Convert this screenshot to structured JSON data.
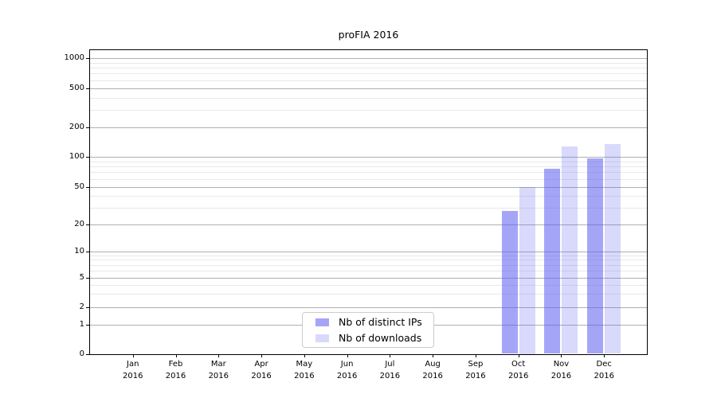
{
  "chart_data": {
    "type": "bar",
    "title": "proFIA 2016",
    "categories": [
      "Jan",
      "Feb",
      "Mar",
      "Apr",
      "May",
      "Jun",
      "Jul",
      "Aug",
      "Sep",
      "Oct",
      "Nov",
      "Dec"
    ],
    "category_year": "2016",
    "series": [
      {
        "name": "Nb of distinct IPs",
        "base_color": "#5b5bf2",
        "fill": "rgba(91,91,242,0.55)",
        "values": [
          0,
          0,
          0,
          0,
          0,
          0,
          0,
          0,
          0,
          28,
          76,
          97
        ]
      },
      {
        "name": "Nb of downloads",
        "base_color": "#5b5bf2",
        "fill": "rgba(91,91,242,0.23)",
        "values": [
          0,
          0,
          0,
          0,
          0,
          0,
          0,
          0,
          0,
          50,
          126,
          134
        ]
      }
    ],
    "yticks": [
      0,
      1,
      2,
      5,
      10,
      20,
      50,
      100,
      200,
      500,
      1000
    ],
    "y_minor_gridlines": [
      3,
      4,
      6,
      7,
      8,
      9,
      30,
      40,
      60,
      70,
      80,
      90,
      300,
      400,
      600,
      700,
      800,
      900
    ],
    "scale": "symlog",
    "ylim": [
      0,
      1200
    ],
    "grid": true,
    "legend_position": "bottom-center",
    "y_anchors": [
      [
        0,
        381.5
      ],
      [
        1,
        345.3
      ],
      [
        2,
        323
      ],
      [
        5,
        285.7
      ],
      [
        10,
        252.7
      ],
      [
        20,
        219
      ],
      [
        50,
        171.5
      ],
      [
        100,
        134
      ],
      [
        200,
        96.5
      ],
      [
        500,
        48
      ],
      [
        1000,
        9.7
      ]
    ],
    "colors": {
      "grid_major": "#b0b0b0",
      "grid_minor": "#e9e9e9",
      "spine": "#000000",
      "text": "#000000",
      "legend_border": "#cccccc",
      "background": "#ffffff"
    }
  }
}
